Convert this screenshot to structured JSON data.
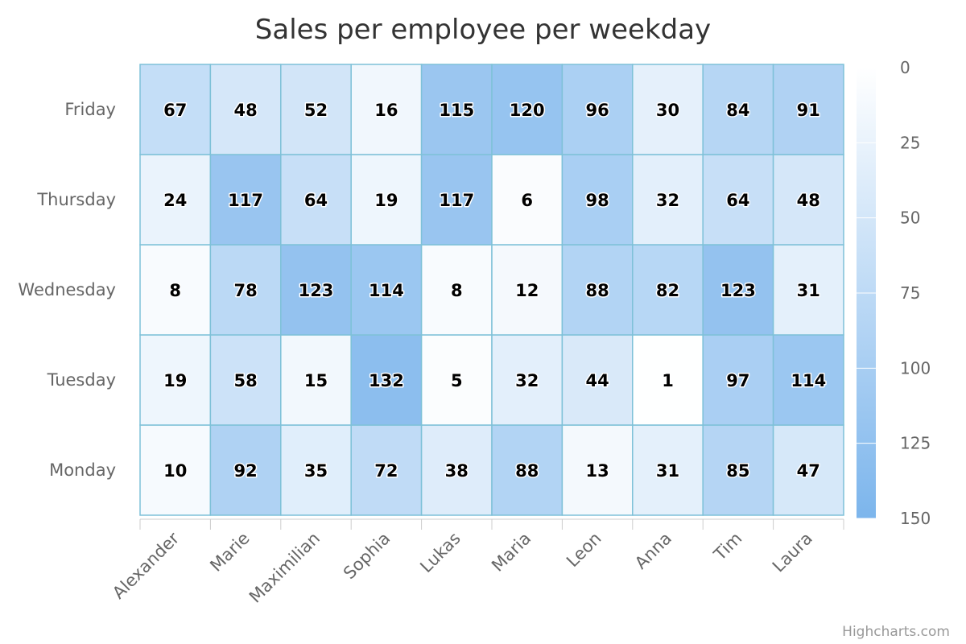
{
  "chart_data": {
    "type": "heatmap",
    "title": "Sales per employee per weekday",
    "x_categories": [
      "Alexander",
      "Marie",
      "Maximilian",
      "Sophia",
      "Lukas",
      "Maria",
      "Leon",
      "Anna",
      "Tim",
      "Laura"
    ],
    "y_categories": [
      "Monday",
      "Tuesday",
      "Wednesday",
      "Thursday",
      "Friday"
    ],
    "values": [
      [
        10,
        19,
        8,
        24,
        67
      ],
      [
        92,
        58,
        78,
        117,
        48
      ],
      [
        35,
        15,
        123,
        64,
        52
      ],
      [
        72,
        132,
        114,
        19,
        16
      ],
      [
        38,
        5,
        8,
        117,
        115
      ],
      [
        88,
        32,
        12,
        6,
        120
      ],
      [
        13,
        44,
        88,
        98,
        96
      ],
      [
        31,
        1,
        82,
        32,
        30
      ],
      [
        85,
        97,
        123,
        64,
        84
      ],
      [
        47,
        114,
        31,
        48,
        91
      ]
    ],
    "color_axis": {
      "min": 0,
      "max": 150,
      "ticks": [
        0,
        25,
        50,
        75,
        100,
        125,
        150
      ]
    },
    "colors": {
      "min": "#ffffff",
      "max": "#7cb5ec",
      "border": "#7ec1d8",
      "axis": "#cccccc"
    },
    "legend_position": "right"
  },
  "credits": "Highcharts.com"
}
